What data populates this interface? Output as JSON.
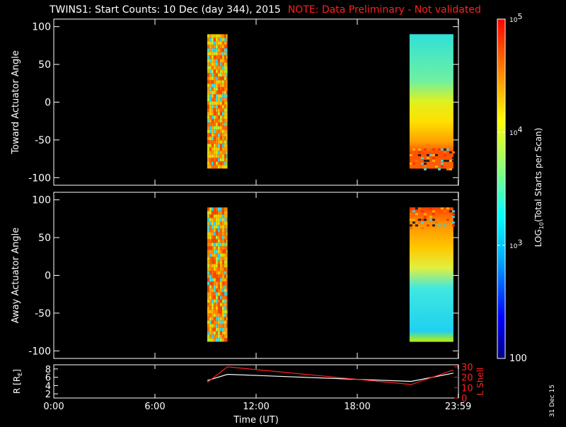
{
  "title": "TWINS1: Start Counts: 10 Dec (day 344), 2015",
  "note": "NOTE: Data Preliminary - Not validated",
  "date_stamp": "31 Dec 15",
  "colors": {
    "background": "#000000",
    "axes": "#ffffff",
    "note": "#ff2020",
    "r_line": "#ffffff",
    "lshell_line": "#ff2020"
  },
  "chart_data": [
    {
      "type": "heatmap",
      "ylabel": "Toward Actuator Angle",
      "ylim": [
        -110,
        110
      ],
      "yticks": [
        -100,
        -50,
        0,
        50,
        100
      ],
      "xlim": [
        0,
        24
      ],
      "segments": [
        {
          "x_start": 9.1,
          "x_end": 10.3,
          "y_start": -88,
          "y_end": 90,
          "pattern": "noisy-orange"
        },
        {
          "x_start": 21.1,
          "x_end": 23.7,
          "y_start": -88,
          "y_end": 90,
          "pattern": "toward-gradient"
        }
      ]
    },
    {
      "type": "heatmap",
      "ylabel": "Away Actuator Angle",
      "ylim": [
        -110,
        110
      ],
      "yticks": [
        -100,
        -50,
        0,
        50,
        100
      ],
      "xlim": [
        0,
        24
      ],
      "segments": [
        {
          "x_start": 9.1,
          "x_end": 10.3,
          "y_start": -88,
          "y_end": 90,
          "pattern": "noisy-orange"
        },
        {
          "x_start": 21.1,
          "x_end": 23.7,
          "y_start": -88,
          "y_end": 90,
          "pattern": "away-gradient"
        }
      ]
    },
    {
      "type": "line",
      "ylabel": "R [R",
      "ylabel_sub": "E",
      "ylabel_close": "]",
      "ylim": [
        1,
        9
      ],
      "yticks": [
        2,
        4,
        6,
        8
      ],
      "y2label": "L Shell",
      "y2lim": [
        0,
        32
      ],
      "y2ticks": [
        0,
        10,
        20,
        30
      ],
      "xlabel": "Time (UT)",
      "xlim": [
        0,
        24
      ],
      "xticks": [
        0,
        6,
        12,
        18,
        23.983
      ],
      "xticklabels": [
        "0:00",
        "6:00",
        "12:00",
        "18:00",
        "23:59"
      ],
      "series": [
        {
          "axis": "left",
          "color": "#ffffff",
          "x": [
            9.1,
            10.3,
            21.2,
            23.7
          ],
          "y": [
            5.2,
            6.7,
            5.0,
            7.0
          ]
        },
        {
          "axis": "right",
          "color": "#ff2020",
          "x": [
            9.1,
            10.3,
            21.2,
            23.7
          ],
          "y": [
            15,
            30,
            13,
            27
          ]
        }
      ]
    }
  ],
  "colorbar": {
    "label": "LOG10(Total Starts per Scan)",
    "label_main": "LOG",
    "label_sub": "10",
    "label_rest": "(Total Starts per Scan)",
    "min": 100,
    "max": 100000,
    "min_label": "100",
    "ticks": [
      {
        "value": 1000,
        "base": "10",
        "exp": "3"
      },
      {
        "value": 10000,
        "base": "10",
        "exp": "4"
      },
      {
        "value": 100000,
        "base": "10",
        "exp": "5"
      }
    ]
  }
}
